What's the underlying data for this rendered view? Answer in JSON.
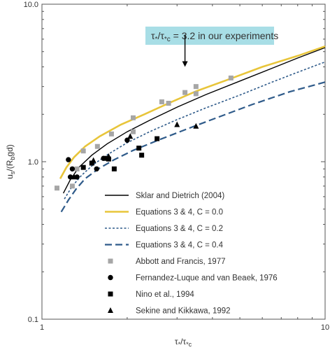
{
  "chart_data": {
    "type": "scatter",
    "xscale": "log",
    "yscale": "log",
    "xlim": [
      1,
      10
    ],
    "ylim": [
      0.1,
      10
    ],
    "x_ticks": [
      {
        "value": 1,
        "label": "1"
      },
      {
        "value": 10,
        "label": "10"
      }
    ],
    "y_ticks": [
      {
        "value": 0.1,
        "label": "0.1"
      },
      {
        "value": 1,
        "label": "1.0"
      },
      {
        "value": 10,
        "label": "10.0"
      }
    ],
    "xlabel": {
      "main": "τ",
      "sub1": "*",
      "slash": "/τ",
      "sub2": "*c"
    },
    "ylabel": {
      "main": "u",
      "sub1": "s",
      "mid": "/(R",
      "sub2": "b",
      "tail": "gd)"
    },
    "annotation": {
      "text": "τ*/τ*c = 3.2 in our experiments",
      "arrow_x": 3.2,
      "arrow_y_top": 6.4,
      "arrow_y_bottom": 4.0
    },
    "annotation_parts": {
      "tau1": "τ",
      "s1": "*",
      "mid": "/τ",
      "s2": "*c",
      "rest": " = 3.2 in our experiments"
    },
    "grid": false,
    "legend_position": "lower-right",
    "series": [
      {
        "name": "Sklar and Dietrich (2004)",
        "kind": "line",
        "style": "solid",
        "color": "#000000",
        "x": [
          1.19,
          1.26,
          1.35,
          1.5,
          1.7,
          2.0,
          2.4,
          3.0,
          3.8,
          5.0,
          6.5,
          8.0,
          10.0
        ],
        "y": [
          0.63,
          0.77,
          0.92,
          1.1,
          1.3,
          1.55,
          1.83,
          2.22,
          2.67,
          3.25,
          3.92,
          4.55,
          5.3
        ]
      },
      {
        "name": "Equations 3 & 4, C = 0.0",
        "kind": "line",
        "style": "solid-thick",
        "color": "#e8c53a",
        "x": [
          1.16,
          1.22,
          1.3,
          1.42,
          1.6,
          1.9,
          2.3,
          2.8,
          3.5,
          4.5,
          6.0,
          8.0,
          10.0
        ],
        "y": [
          0.78,
          0.92,
          1.07,
          1.25,
          1.45,
          1.72,
          2.0,
          2.35,
          2.8,
          3.3,
          4.0,
          4.7,
          5.4
        ]
      },
      {
        "name": "Equations 3 & 4, C = 0.2",
        "kind": "line",
        "style": "dotted",
        "color": "#2f5b8a",
        "x": [
          1.2,
          1.28,
          1.38,
          1.52,
          1.72,
          2.0,
          2.4,
          3.0,
          3.8,
          5.0,
          6.5,
          8.0,
          10.0
        ],
        "y": [
          0.58,
          0.7,
          0.82,
          0.96,
          1.12,
          1.32,
          1.55,
          1.85,
          2.2,
          2.65,
          3.2,
          3.7,
          4.3
        ]
      },
      {
        "name": "Equations 3 & 4, C = 0.4",
        "kind": "line",
        "style": "dashed",
        "color": "#2f5b8a",
        "x": [
          1.17,
          1.24,
          1.32,
          1.42,
          1.58,
          1.8,
          2.1,
          2.6,
          3.3,
          4.2,
          5.5,
          7.5,
          10.0
        ],
        "y": [
          0.48,
          0.57,
          0.67,
          0.78,
          0.9,
          1.03,
          1.18,
          1.38,
          1.63,
          1.92,
          2.3,
          2.78,
          3.2
        ]
      },
      {
        "name": "Abbott and Francis, 1977",
        "kind": "points",
        "marker": "square",
        "color": "#a6a6a6",
        "x": [
          1.13,
          1.28,
          1.33,
          1.4,
          1.57,
          1.76,
          2.1,
          2.1,
          2.65,
          2.8,
          3.2,
          3.5,
          3.5,
          4.65
        ],
        "y": [
          0.68,
          0.7,
          0.9,
          1.17,
          1.25,
          1.5,
          1.9,
          1.55,
          2.4,
          2.35,
          2.75,
          3.0,
          2.7,
          3.4
        ]
      },
      {
        "name": "Fernandez-Luque and van Beaek, 1976",
        "kind": "points",
        "marker": "circle",
        "color": "#000000",
        "x": [
          1.24,
          1.26,
          1.28,
          1.33,
          1.56,
          1.65,
          2.0
        ],
        "y": [
          1.03,
          0.8,
          0.9,
          0.8,
          0.9,
          1.05,
          1.37
        ]
      },
      {
        "name": "Nino et al., 1994",
        "kind": "points",
        "marker": "square",
        "color": "#000000",
        "x": [
          1.4,
          1.5,
          1.7,
          1.72,
          1.8,
          2.2,
          2.25,
          2.55
        ],
        "y": [
          0.92,
          0.98,
          1.05,
          1.04,
          0.9,
          1.22,
          1.1,
          1.4
        ]
      },
      {
        "name": "Sekine and Kikkawa, 1992",
        "kind": "points",
        "marker": "triangle",
        "color": "#000000",
        "x": [
          1.3,
          1.52,
          1.72,
          2.05,
          3.0,
          3.5
        ],
        "y": [
          0.8,
          1.02,
          1.08,
          1.45,
          1.72,
          1.68
        ]
      }
    ]
  }
}
